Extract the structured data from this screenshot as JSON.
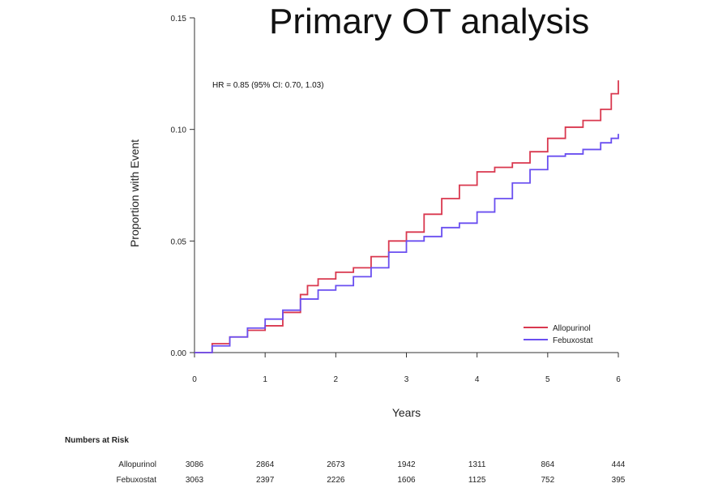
{
  "slide": {
    "title": "Primary OT analysis"
  },
  "chart_data": {
    "type": "line",
    "xlabel": "Years",
    "ylabel": "Proportion with Event",
    "xlim": [
      0,
      6
    ],
    "ylim": [
      0,
      0.15
    ],
    "x_ticks": [
      "0",
      "1",
      "2",
      "3",
      "4",
      "5",
      "6"
    ],
    "y_ticks": [
      "0.00",
      "0.05",
      "0.10",
      "0.15"
    ],
    "annotation": "HR = 0.85 (95% CI: 0.70, 1.03)",
    "legend_position": "bottom-right",
    "grid": false,
    "series": [
      {
        "name": "Allopurinol",
        "color": "#d9384f",
        "points": [
          [
            0,
            0
          ],
          [
            0.25,
            0.004
          ],
          [
            0.5,
            0.007
          ],
          [
            0.75,
            0.01
          ],
          [
            1,
            0.012
          ],
          [
            1.25,
            0.018
          ],
          [
            1.5,
            0.026
          ],
          [
            1.6,
            0.03
          ],
          [
            1.75,
            0.033
          ],
          [
            2,
            0.036
          ],
          [
            2.25,
            0.038
          ],
          [
            2.5,
            0.043
          ],
          [
            2.75,
            0.05
          ],
          [
            3,
            0.054
          ],
          [
            3.25,
            0.062
          ],
          [
            3.5,
            0.069
          ],
          [
            3.75,
            0.075
          ],
          [
            4,
            0.081
          ],
          [
            4.25,
            0.083
          ],
          [
            4.5,
            0.085
          ],
          [
            4.75,
            0.09
          ],
          [
            5,
            0.096
          ],
          [
            5.25,
            0.101
          ],
          [
            5.5,
            0.104
          ],
          [
            5.75,
            0.109
          ],
          [
            5.9,
            0.116
          ],
          [
            6,
            0.122
          ]
        ]
      },
      {
        "name": "Febuxostat",
        "color": "#6a4ff0",
        "points": [
          [
            0,
            0
          ],
          [
            0.25,
            0.003
          ],
          [
            0.5,
            0.007
          ],
          [
            0.75,
            0.011
          ],
          [
            1,
            0.015
          ],
          [
            1.25,
            0.019
          ],
          [
            1.5,
            0.024
          ],
          [
            1.75,
            0.028
          ],
          [
            2,
            0.03
          ],
          [
            2.25,
            0.034
          ],
          [
            2.5,
            0.038
          ],
          [
            2.75,
            0.045
          ],
          [
            3,
            0.05
          ],
          [
            3.25,
            0.052
          ],
          [
            3.5,
            0.056
          ],
          [
            3.75,
            0.058
          ],
          [
            4,
            0.063
          ],
          [
            4.25,
            0.069
          ],
          [
            4.5,
            0.076
          ],
          [
            4.75,
            0.082
          ],
          [
            5,
            0.088
          ],
          [
            5.25,
            0.089
          ],
          [
            5.5,
            0.091
          ],
          [
            5.75,
            0.094
          ],
          [
            5.9,
            0.096
          ],
          [
            6,
            0.098
          ]
        ]
      }
    ],
    "numbers_at_risk": {
      "title": "Numbers at Risk",
      "rows": [
        {
          "label": "Allopurinol",
          "values": [
            "3086",
            "2864",
            "2673",
            "1942",
            "1311",
            "864",
            "444"
          ]
        },
        {
          "label": "Febuxostat",
          "values": [
            "3063",
            "2397",
            "2226",
            "1606",
            "1125",
            "752",
            "395"
          ]
        }
      ]
    }
  }
}
